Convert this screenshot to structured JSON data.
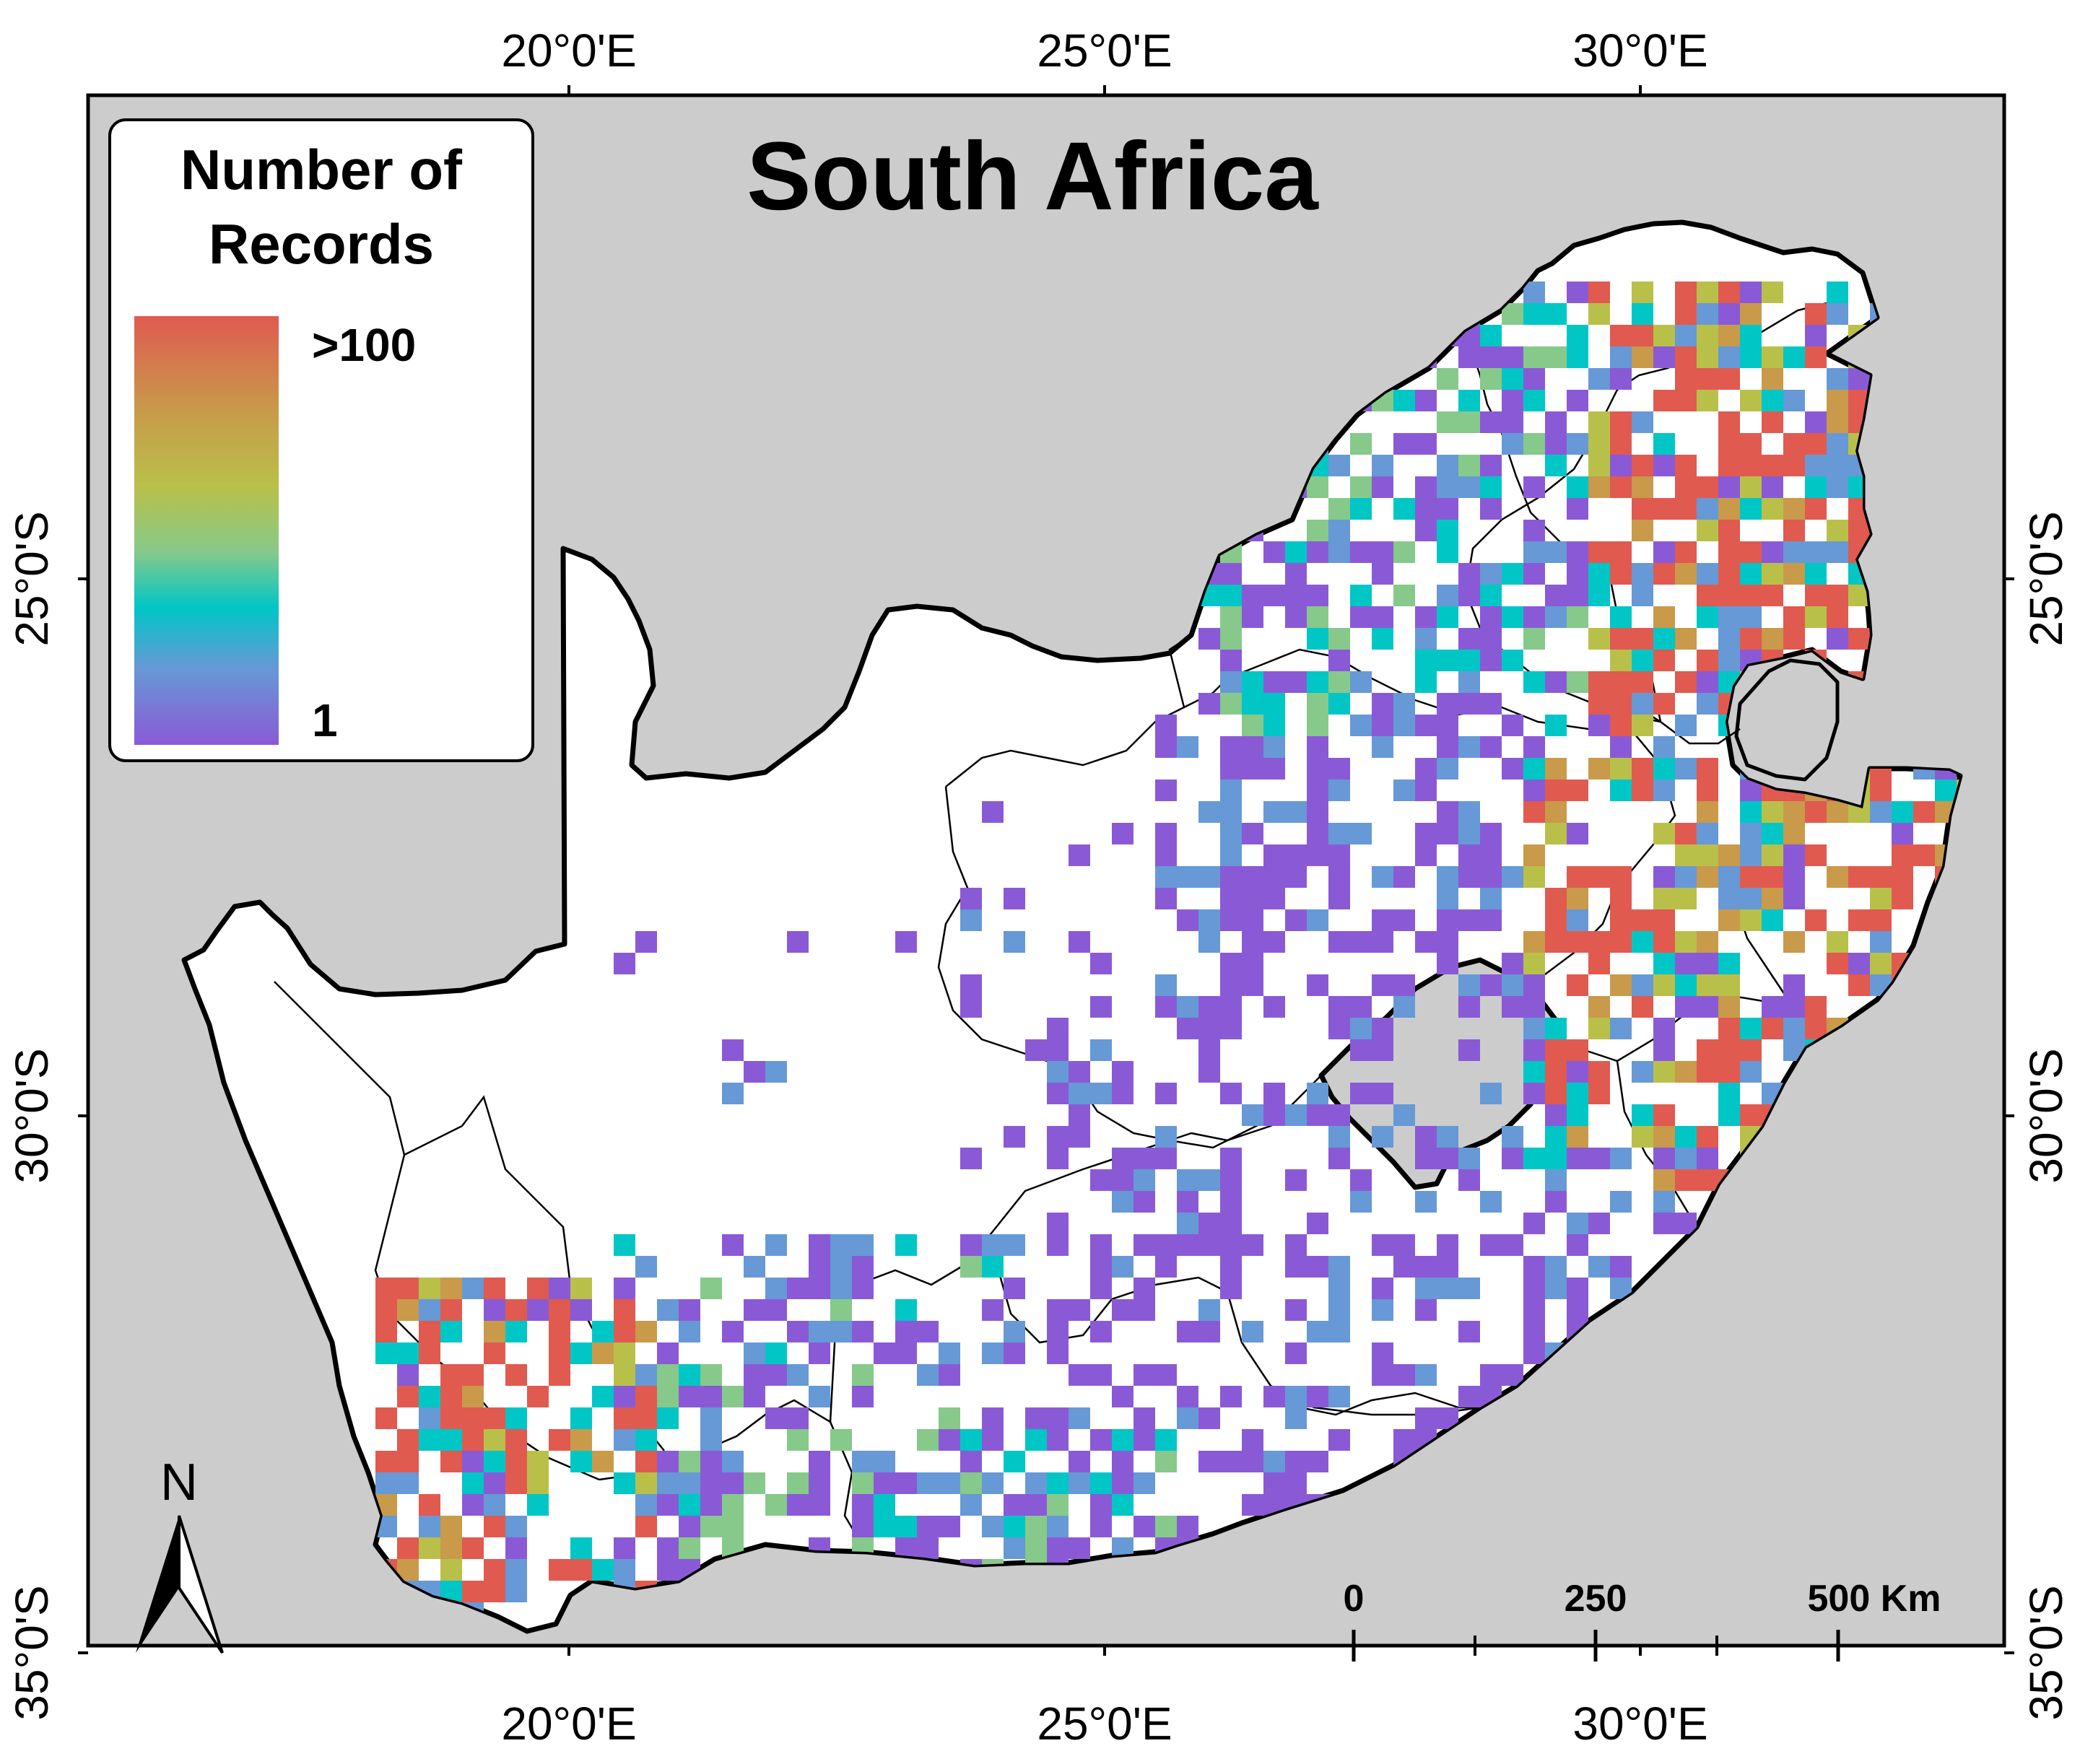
{
  "map": {
    "title": "South Africa",
    "background_color": "#cccccc",
    "land_color": "#ffffff"
  },
  "axes": {
    "top": [
      "20°0'E",
      "25°0'E",
      "30°0'E"
    ],
    "bottom": [
      "20°0'E",
      "25°0'E",
      "30°0'E"
    ],
    "left": [
      "25°0'S",
      "30°0'S",
      "35°0'S"
    ],
    "right": [
      "25°0'S",
      "30°0'S",
      "35°0'S"
    ]
  },
  "legend": {
    "title_line1": "Number of",
    "title_line2": "Records",
    "max_label": ">100",
    "min_label": "1",
    "gradient_colors": [
      "#e05a50",
      "#c89a4a",
      "#b9c04a",
      "#86c98a",
      "#00c6c6",
      "#6699d6",
      "#8a5ad6"
    ]
  },
  "north_arrow": {
    "label": "N",
    "icon": "north-arrow-icon"
  },
  "scale_bar": {
    "labels": [
      "0",
      "250",
      "500 Km"
    ]
  },
  "record_colors": {
    "low": "#8a5ad6",
    "low_mid": "#6699d6",
    "mid": "#00c6c6",
    "mid_high": "#86c98a",
    "high_mid": "#b9c04a",
    "high": "#c89a4a",
    "very_high": "#e05a50"
  }
}
